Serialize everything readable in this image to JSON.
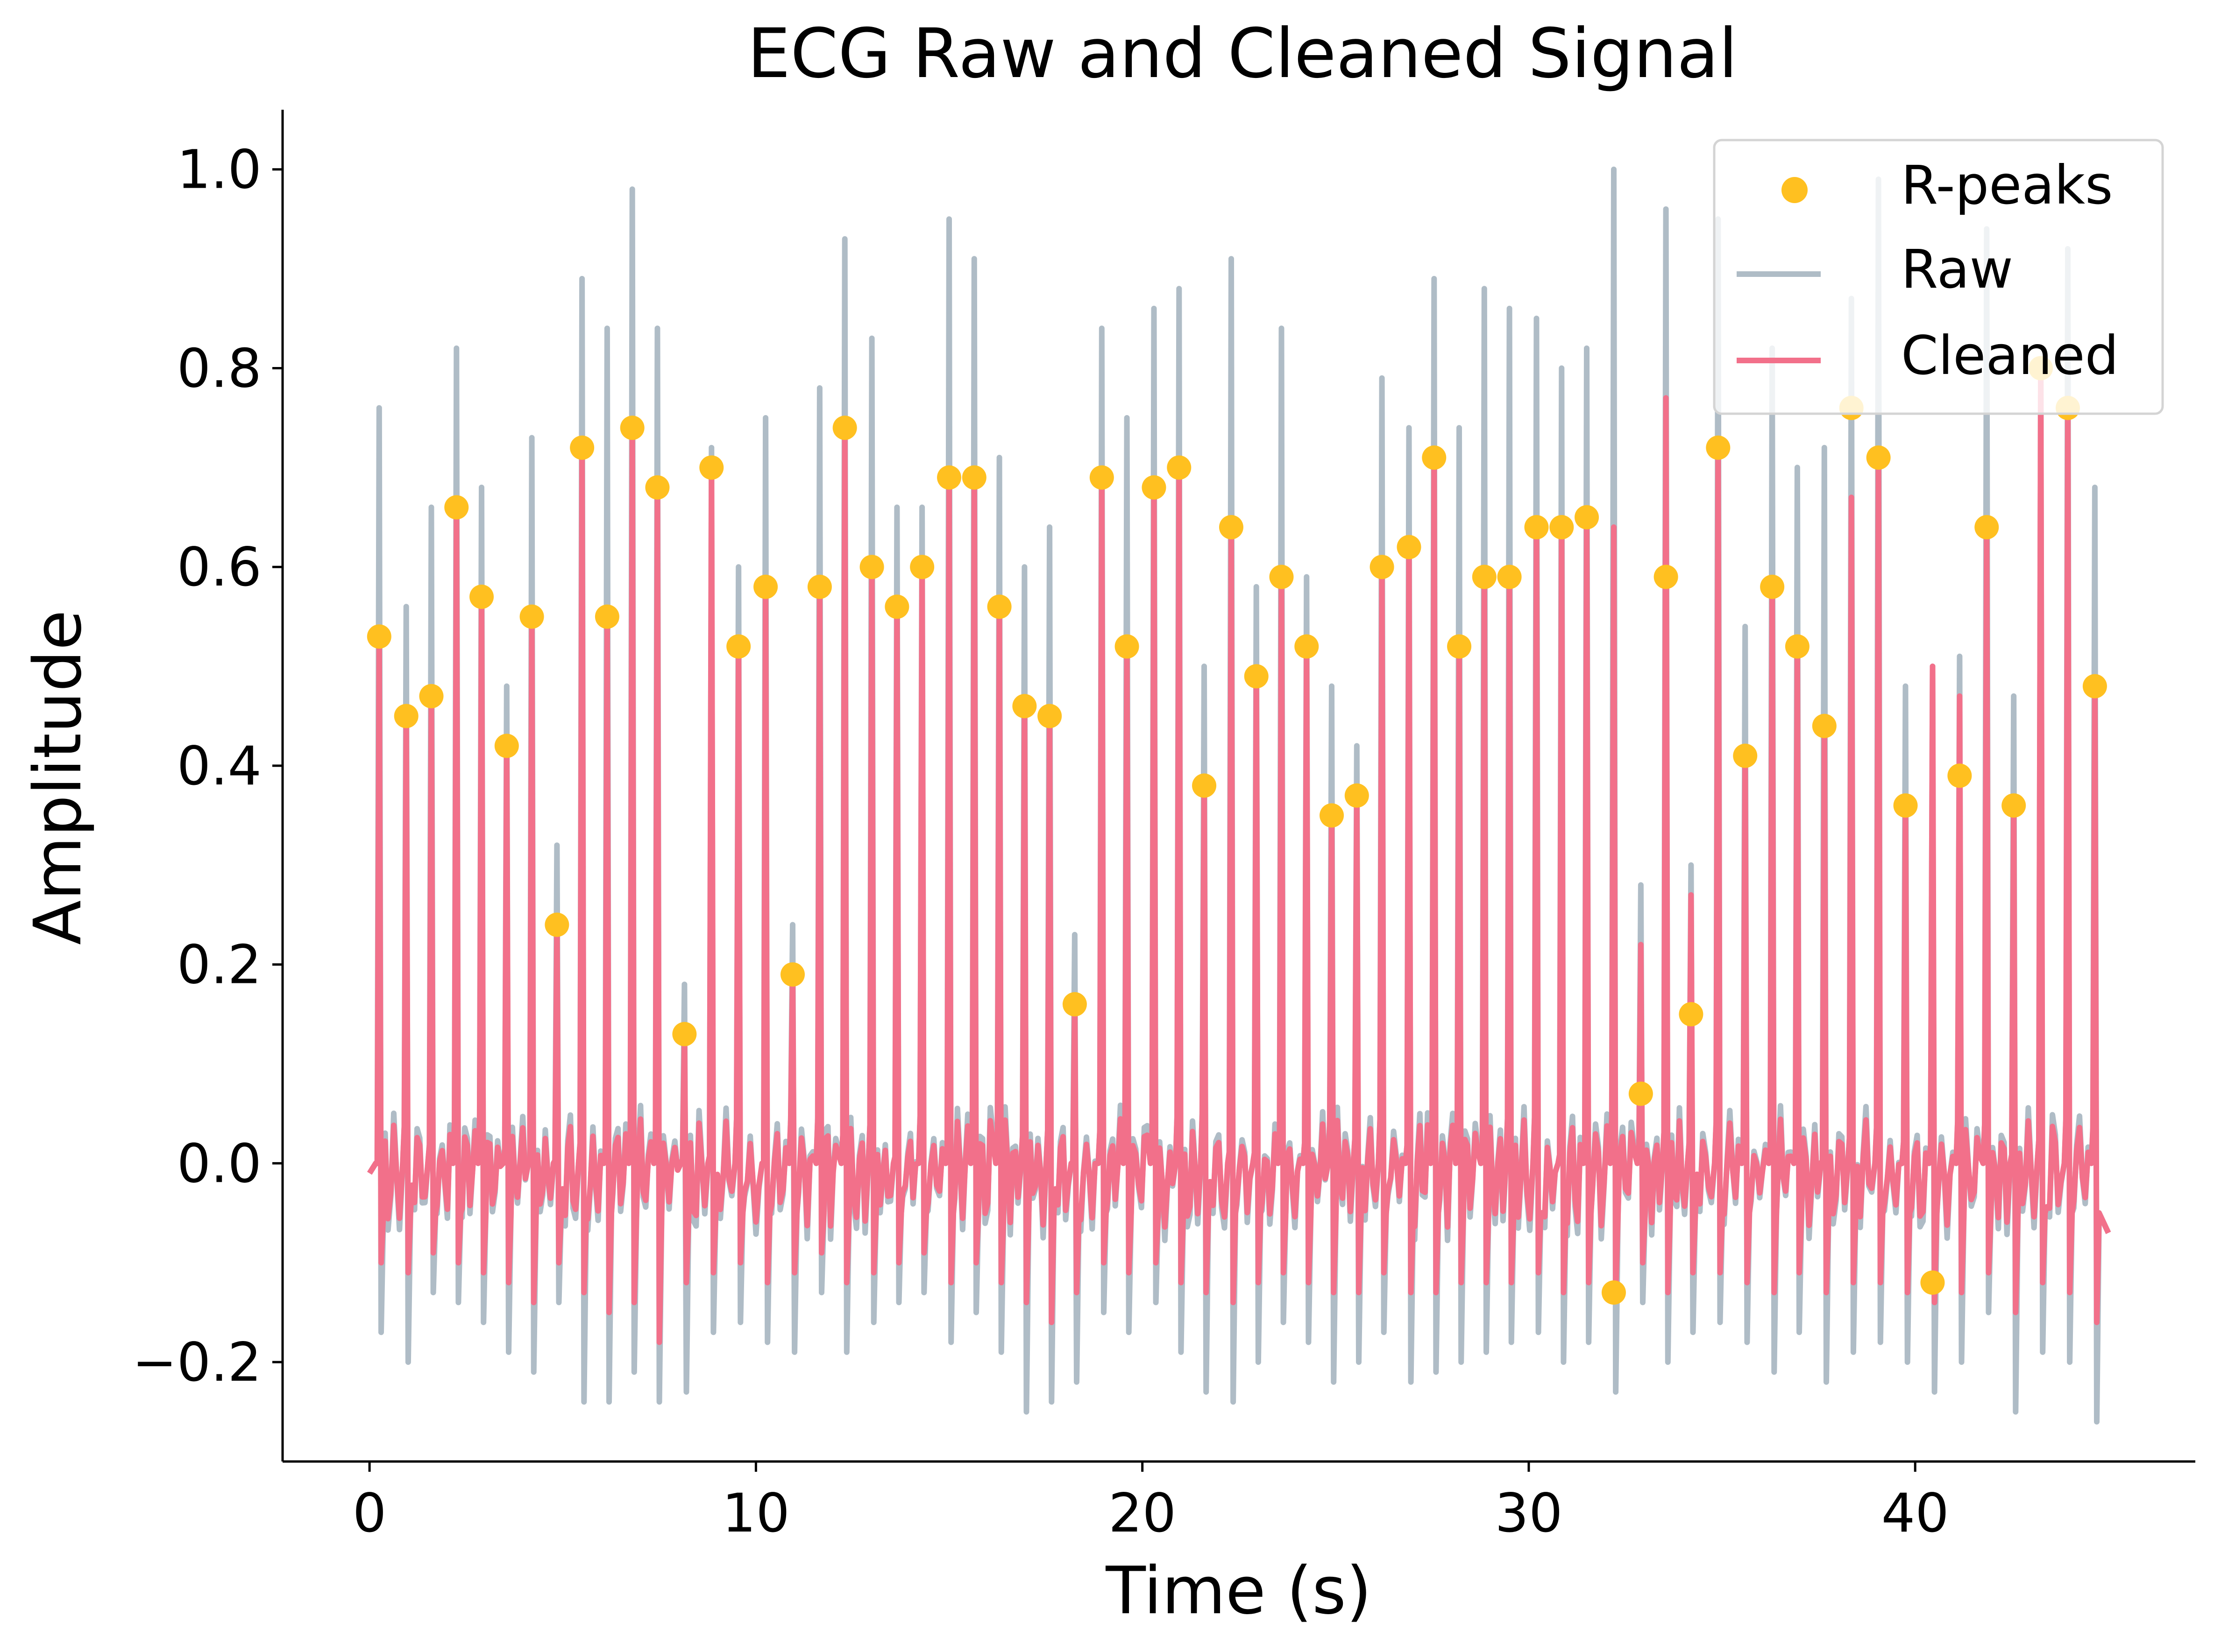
{
  "chart_data": {
    "type": "line",
    "title": "ECG Raw and Cleaned Signal",
    "xlabel": "Time (s)",
    "ylabel": "Amplitude",
    "xlim": [
      -2.25,
      47.25
    ],
    "ylim": [
      -0.3,
      1.06
    ],
    "xticks": [
      0,
      10,
      20,
      30,
      40
    ],
    "xtick_labels": [
      "0",
      "10",
      "20",
      "30",
      "40"
    ],
    "yticks": [
      -0.2,
      0.0,
      0.2,
      0.4,
      0.6,
      0.8,
      1.0
    ],
    "ytick_labels": [
      "−0.2",
      "0.0",
      "0.2",
      "0.4",
      "0.6",
      "0.8",
      "1.0"
    ],
    "grid": false,
    "legend": {
      "position": "top-right",
      "entries": [
        "R-peaks",
        "Raw",
        "Cleaned"
      ]
    },
    "colors": {
      "r_peaks": "#FFC020",
      "raw": "#AFBCC6",
      "cleaned": "#F2708A"
    },
    "series": [
      {
        "name": "R-peaks",
        "kind": "scatter",
        "x": [
          0.25,
          0.95,
          1.6,
          2.25,
          2.9,
          3.55,
          4.2,
          4.85,
          5.5,
          6.15,
          6.8,
          7.45,
          8.15,
          8.85,
          9.55,
          10.25,
          10.95,
          11.65,
          12.3,
          13.0,
          13.65,
          14.3,
          15.0,
          15.65,
          16.3,
          16.95,
          17.6,
          18.25,
          18.95,
          19.6,
          20.3,
          20.95,
          21.6,
          22.3,
          22.95,
          23.6,
          24.25,
          24.9,
          25.55,
          26.2,
          26.9,
          27.55,
          28.2,
          28.85,
          29.5,
          30.2,
          30.85,
          31.5,
          32.2,
          32.9,
          33.55,
          34.2,
          34.9,
          35.6,
          36.3,
          36.95,
          37.65,
          38.35,
          39.05,
          39.75,
          40.45,
          41.15,
          41.85,
          42.55,
          43.25,
          43.95,
          44.65
        ],
        "y": [
          0.53,
          0.45,
          0.47,
          0.66,
          0.57,
          0.42,
          0.55,
          0.24,
          0.72,
          0.55,
          0.74,
          0.68,
          0.13,
          0.7,
          0.52,
          0.58,
          0.19,
          0.58,
          0.74,
          0.6,
          0.56,
          0.6,
          0.69,
          0.69,
          0.56,
          0.46,
          0.45,
          0.16,
          0.69,
          0.52,
          0.68,
          0.7,
          0.38,
          0.64,
          0.49,
          0.59,
          0.52,
          0.35,
          0.37,
          0.6,
          0.62,
          0.71,
          0.52,
          0.59,
          0.59,
          0.64,
          0.64,
          0.65,
          -0.13,
          0.07,
          0.59,
          0.15,
          0.72,
          0.41,
          0.58,
          0.52,
          0.44,
          0.76,
          0.71,
          0.36,
          -0.12,
          0.39,
          0.64,
          0.36,
          0.8,
          0.76,
          0.48
        ]
      },
      {
        "name": "Raw",
        "kind": "line",
        "peak_max": [
          0.76,
          0.56,
          0.66,
          0.82,
          0.68,
          0.48,
          0.73,
          0.32,
          0.89,
          0.84,
          0.98,
          0.84,
          0.18,
          0.72,
          0.6,
          0.75,
          0.24,
          0.78,
          0.93,
          0.83,
          0.66,
          0.66,
          0.95,
          0.91,
          0.71,
          0.6,
          0.64,
          0.23,
          0.84,
          0.75,
          0.86,
          0.88,
          0.5,
          0.91,
          0.58,
          0.84,
          0.59,
          0.48,
          0.42,
          0.79,
          0.74,
          0.89,
          0.74,
          0.88,
          0.86,
          0.85,
          0.8,
          0.82,
          1.0,
          0.28,
          0.96,
          0.3,
          0.95,
          0.54,
          0.82,
          0.7,
          0.72,
          0.87,
          0.99,
          0.48,
          0.5,
          0.51,
          0.94,
          0.47,
          0.8,
          0.92,
          0.68
        ],
        "trough_min": [
          -0.17,
          -0.2,
          -0.13,
          -0.14,
          -0.16,
          -0.19,
          -0.21,
          -0.14,
          -0.24,
          -0.24,
          -0.21,
          -0.24,
          -0.23,
          -0.17,
          -0.16,
          -0.18,
          -0.19,
          -0.13,
          -0.19,
          -0.16,
          -0.14,
          -0.13,
          -0.18,
          -0.15,
          -0.19,
          -0.25,
          -0.24,
          -0.22,
          -0.15,
          -0.17,
          -0.14,
          -0.19,
          -0.23,
          -0.24,
          -0.2,
          -0.16,
          -0.18,
          -0.22,
          -0.2,
          -0.17,
          -0.22,
          -0.21,
          -0.2,
          -0.19,
          -0.18,
          -0.17,
          -0.2,
          -0.18,
          -0.23,
          -0.14,
          -0.2,
          -0.17,
          -0.16,
          -0.18,
          -0.21,
          -0.17,
          -0.22,
          -0.19,
          -0.18,
          -0.2,
          -0.23,
          -0.2,
          -0.15,
          -0.25,
          -0.19,
          -0.2,
          -0.26
        ]
      },
      {
        "name": "Cleaned",
        "kind": "line",
        "peak_max": [
          0.53,
          0.45,
          0.47,
          0.66,
          0.57,
          0.42,
          0.55,
          0.24,
          0.72,
          0.55,
          0.74,
          0.68,
          0.13,
          0.7,
          0.52,
          0.58,
          0.19,
          0.58,
          0.74,
          0.6,
          0.56,
          0.6,
          0.69,
          0.69,
          0.56,
          0.46,
          0.45,
          0.16,
          0.69,
          0.52,
          0.68,
          0.7,
          0.38,
          0.64,
          0.49,
          0.59,
          0.52,
          0.35,
          0.37,
          0.6,
          0.62,
          0.71,
          0.52,
          0.59,
          0.59,
          0.64,
          0.64,
          0.65,
          0.64,
          0.22,
          0.77,
          0.27,
          0.72,
          0.41,
          0.58,
          0.52,
          0.44,
          0.67,
          0.71,
          0.36,
          0.5,
          0.47,
          0.64,
          0.36,
          0.8,
          0.76,
          0.48
        ],
        "trough_min": [
          -0.1,
          -0.11,
          -0.09,
          -0.1,
          -0.11,
          -0.12,
          -0.14,
          -0.1,
          -0.13,
          -0.15,
          -0.14,
          -0.18,
          -0.12,
          -0.11,
          -0.1,
          -0.12,
          -0.11,
          -0.09,
          -0.12,
          -0.11,
          -0.1,
          -0.09,
          -0.12,
          -0.1,
          -0.12,
          -0.14,
          -0.16,
          -0.13,
          -0.1,
          -0.11,
          -0.1,
          -0.12,
          -0.13,
          -0.14,
          -0.12,
          -0.11,
          -0.12,
          -0.13,
          -0.13,
          -0.11,
          -0.13,
          -0.13,
          -0.12,
          -0.12,
          -0.12,
          -0.11,
          -0.13,
          -0.12,
          -0.13,
          -0.1,
          -0.13,
          -0.11,
          -0.11,
          -0.12,
          -0.13,
          -0.11,
          -0.13,
          -0.12,
          -0.12,
          -0.13,
          -0.14,
          -0.13,
          -0.11,
          -0.15,
          -0.12,
          -0.13,
          -0.16
        ]
      }
    ]
  }
}
